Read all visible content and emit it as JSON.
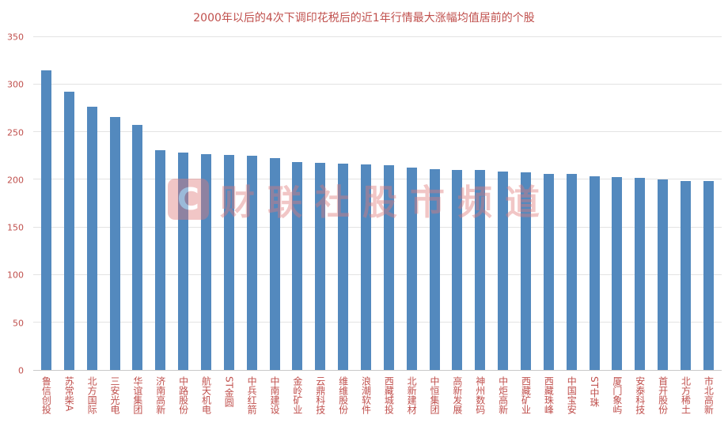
{
  "title": "2000年以后的4次下调印花税后的近1年行情最大涨幅均值居前的个股",
  "watermark": {
    "logo_letter": "C",
    "text": "财联社股市频道"
  },
  "colors": {
    "bar": "#5389BE",
    "title": "#C0504D",
    "axis_label": "#C0504D",
    "grid": "#E3E3E3",
    "watermark": "#E07A7A"
  },
  "chart_data": {
    "type": "bar",
    "title": "2000年以后的4次下调印花税后的近1年行情最大涨幅均值居前的个股",
    "xlabel": "",
    "ylabel": "",
    "ylim": [
      0,
      350
    ],
    "yticks": [
      0,
      50,
      100,
      150,
      200,
      250,
      300,
      350
    ],
    "grid": true,
    "legend": false,
    "categories": [
      "鲁信创投",
      "苏常柴A",
      "北方国际",
      "三安光电",
      "华谊集团",
      "济南高新",
      "中路股份",
      "航天机电",
      "ST金圆",
      "中兵红箭",
      "中南建设",
      "金岭矿业",
      "云鼎科技",
      "维维股份",
      "浪潮软件",
      "西藏城投",
      "北新建材",
      "中恒集团",
      "高新发展",
      "神州数码",
      "中炬高新",
      "西藏矿业",
      "西藏珠峰",
      "中国宝安",
      "ST中珠",
      "厦门象屿",
      "安泰科技",
      "首开股份",
      "北方稀土",
      "市北高新"
    ],
    "values": [
      315,
      293,
      277,
      266,
      258,
      231,
      229,
      227,
      226,
      225,
      223,
      219,
      218,
      217,
      216,
      215,
      213,
      211,
      210,
      210,
      209,
      208,
      206,
      206,
      204,
      203,
      202,
      200,
      199,
      199
    ]
  }
}
